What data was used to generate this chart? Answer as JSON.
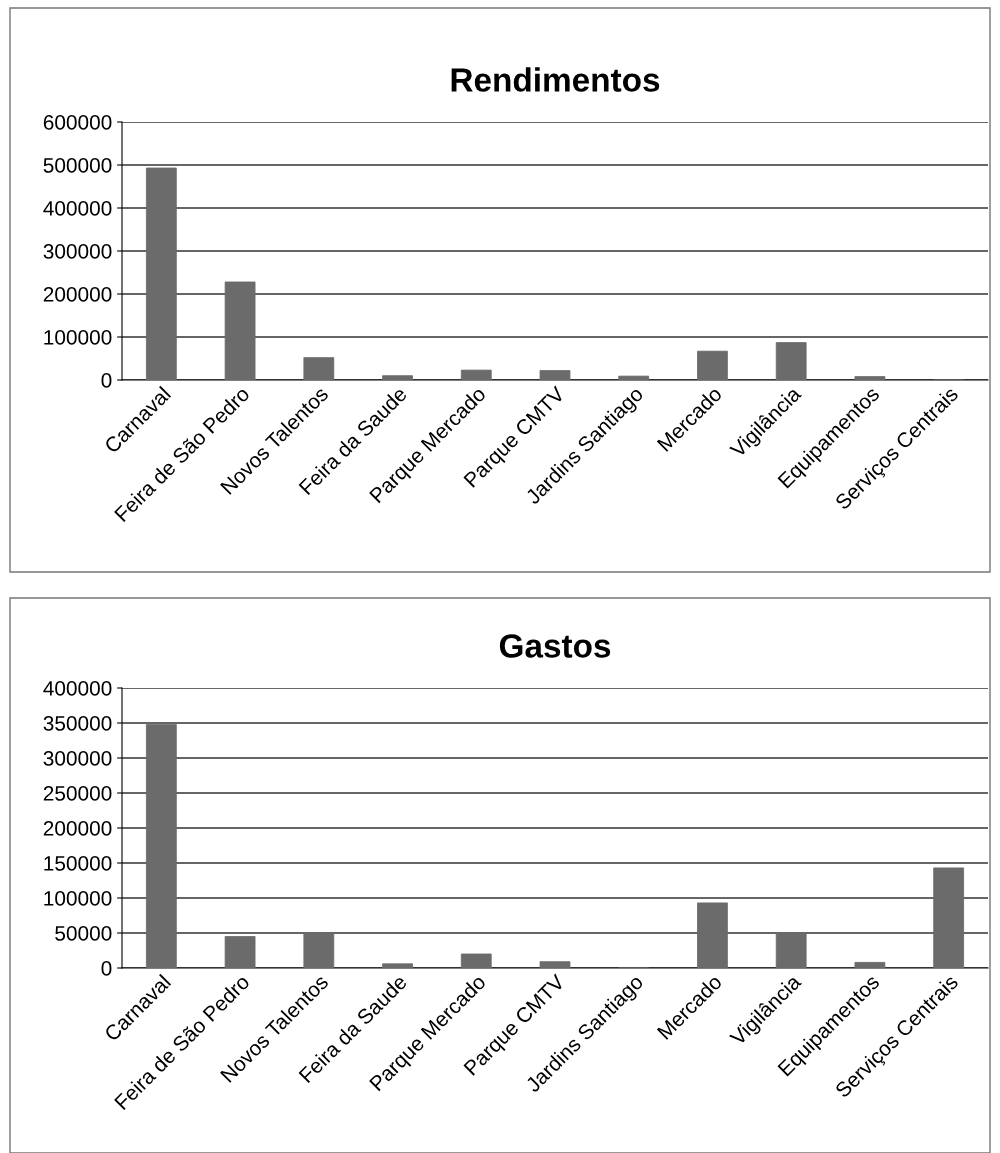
{
  "chart_data": [
    {
      "type": "bar",
      "title": "Rendimentos",
      "categories": [
        "Carnaval",
        "Feira de São Pedro",
        "Novos Talentos",
        "Feira da Saude",
        "Parque Mercado",
        "Parque CMTV",
        "Jardins Santiago",
        "Mercado",
        "Vigilância",
        "Equipamentos",
        "Serviços Centrais"
      ],
      "values": [
        493000,
        228000,
        52000,
        10000,
        23000,
        22000,
        9000,
        67000,
        87000,
        8000,
        0
      ],
      "color": "#6b6b6b",
      "ylim": [
        0,
        600000
      ],
      "yticks": [
        0,
        100000,
        200000,
        300000,
        400000,
        500000,
        600000
      ],
      "grid": "y",
      "legend": false
    },
    {
      "type": "bar",
      "title": "Gastos",
      "categories": [
        "Carnaval",
        "Feira de São Pedro",
        "Novos Talentos",
        "Feira da Saude",
        "Parque Mercado",
        "Parque CMTV",
        "Jardins Santiago",
        "Mercado",
        "Vigilância",
        "Equipamentos",
        "Serviços Centrais"
      ],
      "values": [
        348000,
        45000,
        50000,
        6000,
        20000,
        9000,
        0,
        93000,
        50000,
        8000,
        143000
      ],
      "color": "#6b6b6b",
      "ylim": [
        0,
        400000
      ],
      "yticks": [
        0,
        50000,
        100000,
        150000,
        200000,
        250000,
        300000,
        350000,
        400000
      ],
      "grid": "y",
      "legend": false
    }
  ]
}
